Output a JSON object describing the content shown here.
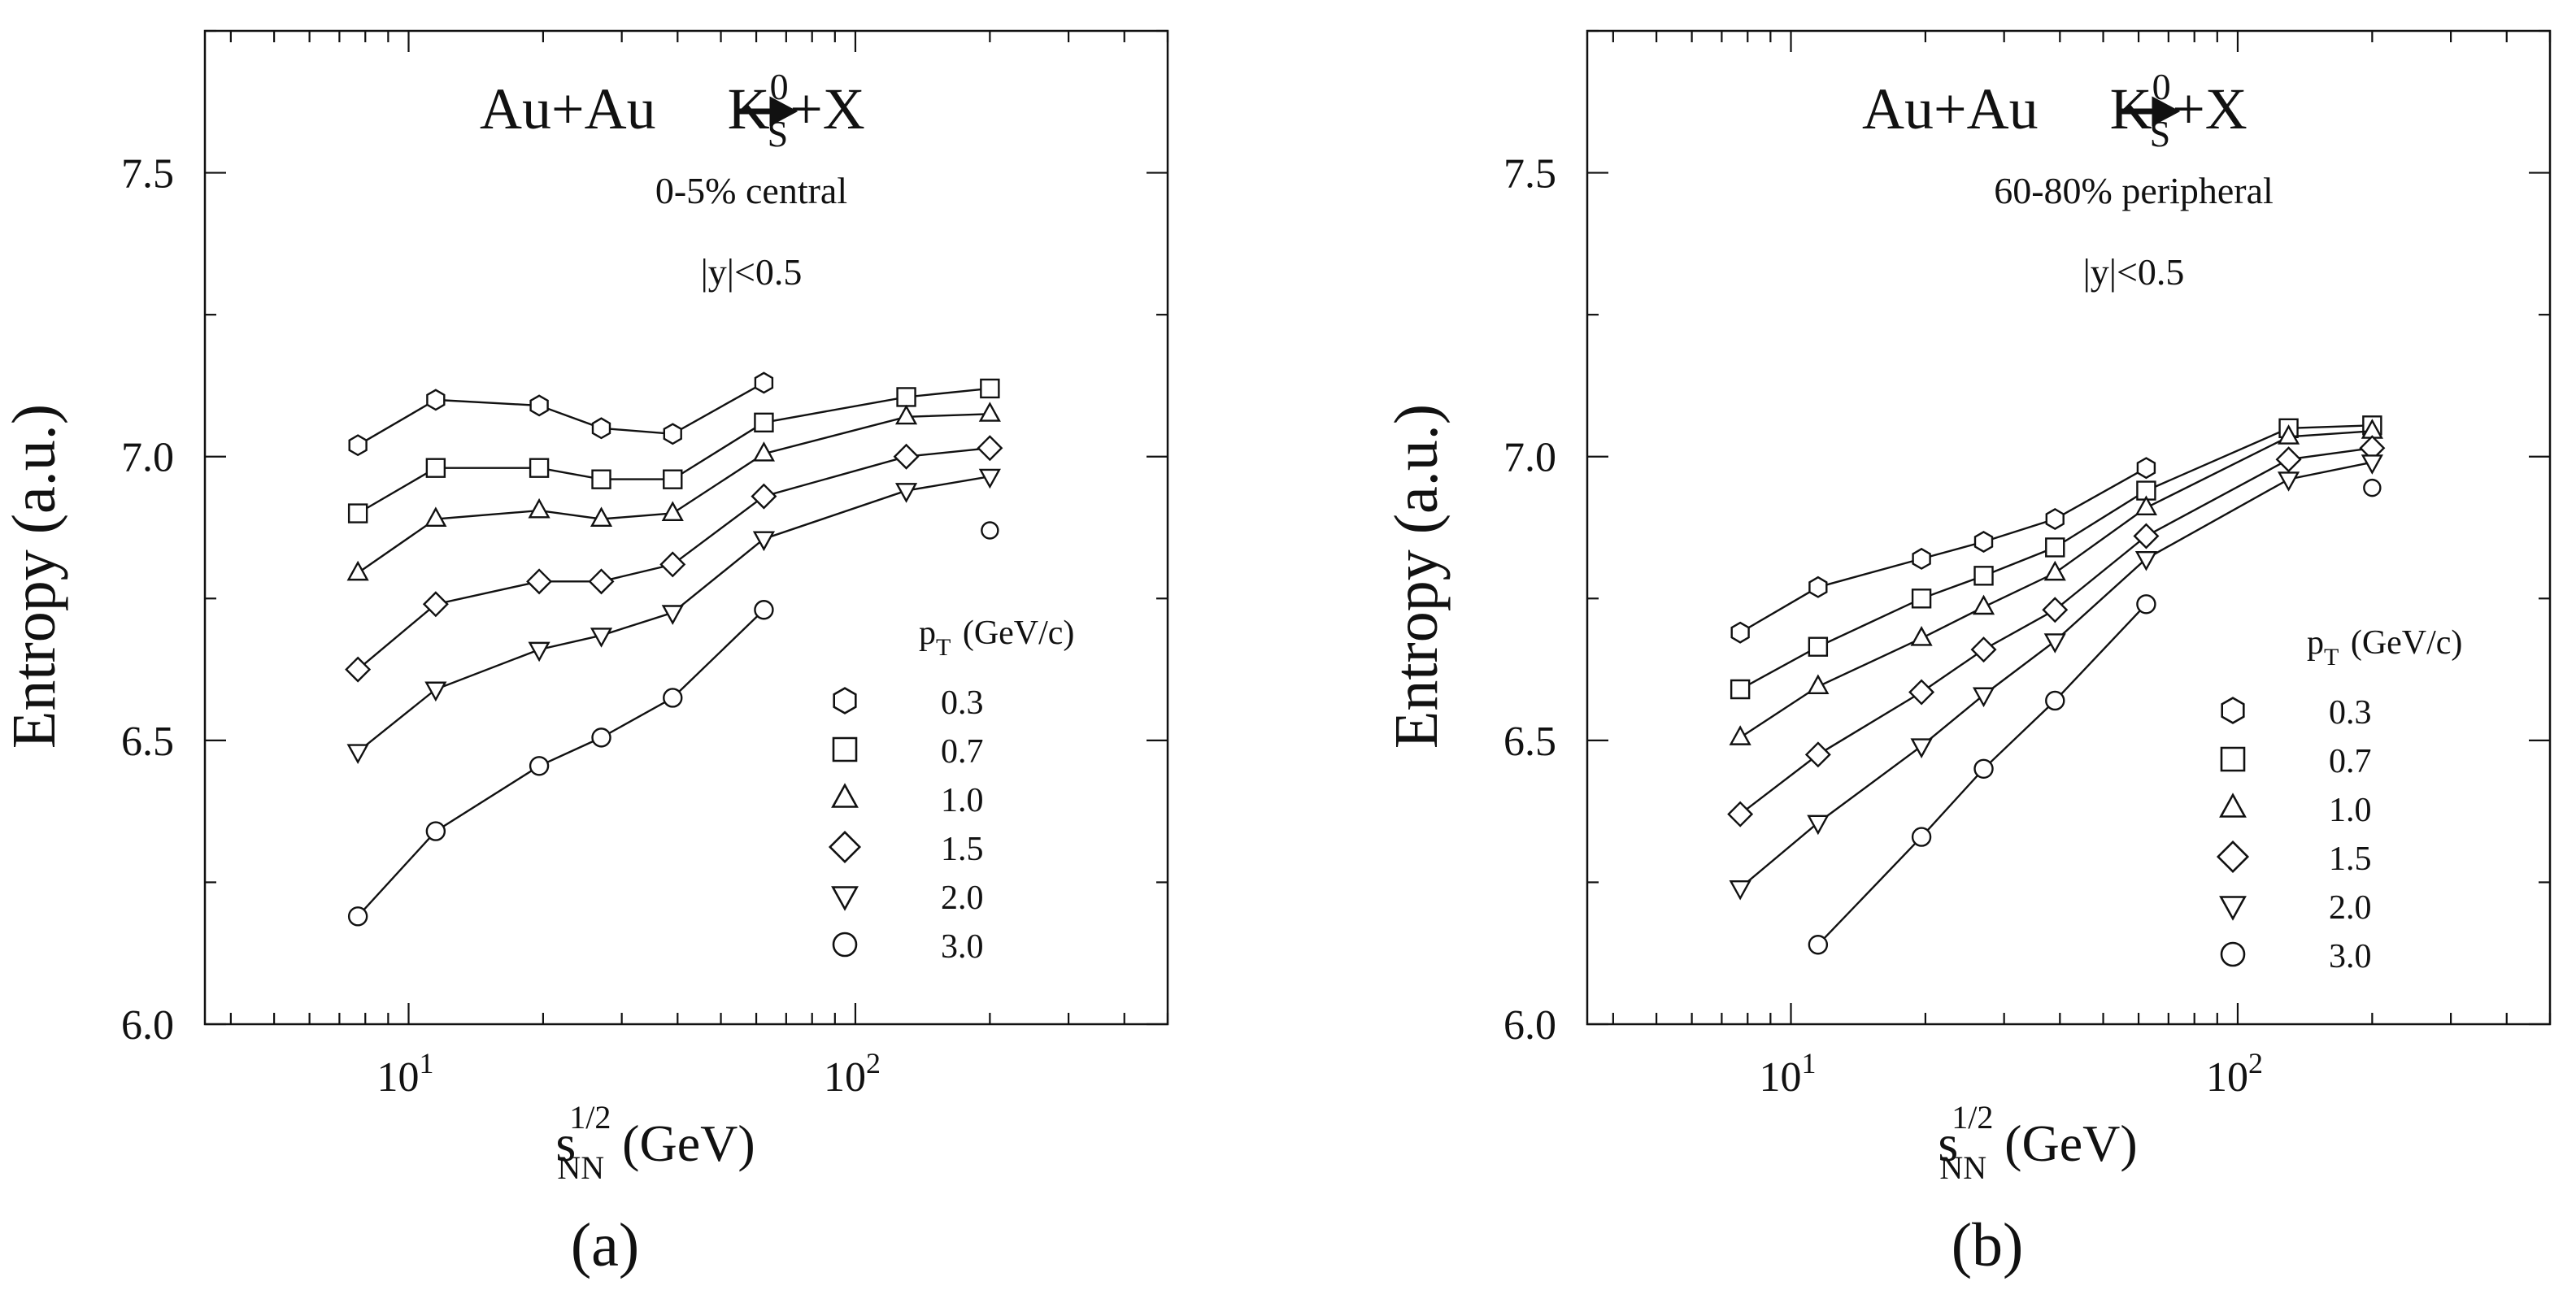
{
  "chart_data": [
    {
      "type": "line",
      "panel_label": "(a)",
      "title_main": "Au+Au",
      "title_particle": "K",
      "title_super": "0",
      "title_sub": "S",
      "title_tail": "+X",
      "subtitle": "0-5% central",
      "rapidity": "|y|<0.5",
      "ylabel": "Entropy  (a.u.)",
      "xlabel_main": "s",
      "xlabel_super": "1/2",
      "xlabel_sub": "NN",
      "xlabel_unit": "(GeV)",
      "xscale": "log",
      "xlim": [
        3.5,
        500
      ],
      "ylim": [
        6.0,
        7.75
      ],
      "y_ticks": [
        "6.0",
        "6.5",
        "7.0",
        "7.5"
      ],
      "x_ticks": [
        {
          "base": "10",
          "exp": "1"
        },
        {
          "base": "10",
          "exp": "2"
        }
      ],
      "legend_title_main": "p",
      "legend_title_sub": "T",
      "legend_title_unit": "(GeV/c)",
      "legend_placement": "bottom-right",
      "series": [
        {
          "name": "0.3",
          "marker": "hexagon",
          "x": [
            7.7,
            11.5,
            19.6,
            27,
            39,
            62.4
          ],
          "y": [
            7.02,
            7.1,
            7.09,
            7.05,
            7.04,
            7.13
          ]
        },
        {
          "name": "0.7",
          "marker": "square",
          "x": [
            7.7,
            11.5,
            19.6,
            27,
            39,
            62.4,
            130,
            200
          ],
          "y": [
            6.9,
            6.98,
            6.98,
            6.96,
            6.96,
            7.06,
            7.105,
            7.12
          ]
        },
        {
          "name": "1.0",
          "marker": "triangle-up",
          "x": [
            7.7,
            11.5,
            19.6,
            27,
            39,
            62.4,
            130,
            200
          ],
          "y": [
            6.795,
            6.89,
            6.905,
            6.89,
            6.9,
            7.005,
            7.07,
            7.075
          ]
        },
        {
          "name": "1.5",
          "marker": "diamond",
          "x": [
            7.7,
            11.5,
            19.6,
            27,
            39,
            62.4,
            130,
            200
          ],
          "y": [
            6.625,
            6.74,
            6.78,
            6.78,
            6.81,
            6.93,
            7.0,
            7.015
          ]
        },
        {
          "name": "2.0",
          "marker": "triangle-down",
          "x": [
            7.7,
            11.5,
            19.6,
            27,
            39,
            62.4,
            130,
            200
          ],
          "y": [
            6.48,
            6.59,
            6.66,
            6.685,
            6.725,
            6.855,
            6.94,
            6.965
          ]
        },
        {
          "name": "3.0",
          "marker": "circle",
          "x": [
            7.7,
            11.5,
            19.6,
            27,
            39,
            62.4
          ],
          "y": [
            6.19,
            6.34,
            6.455,
            6.505,
            6.575,
            6.73
          ],
          "extra_point": {
            "x": 200,
            "y": 6.87
          }
        }
      ]
    },
    {
      "type": "line",
      "panel_label": "(b)",
      "title_main": "Au+Au",
      "title_particle": "K",
      "title_super": "0",
      "title_sub": "S",
      "title_tail": "+X",
      "subtitle": "60-80% peripheral",
      "rapidity": "|y|<0.5",
      "ylabel": "Entropy  (a.u.)",
      "xlabel_main": "s",
      "xlabel_super": "1/2",
      "xlabel_sub": "NN",
      "xlabel_unit": "(GeV)",
      "xscale": "log",
      "xlim": [
        3.5,
        500
      ],
      "ylim": [
        6.0,
        7.75
      ],
      "y_ticks": [
        "6.0",
        "6.5",
        "7.0",
        "7.5"
      ],
      "x_ticks": [
        {
          "base": "10",
          "exp": "1"
        },
        {
          "base": "10",
          "exp": "2"
        }
      ],
      "legend_title_main": "p",
      "legend_title_sub": "T",
      "legend_title_unit": "(GeV/c)",
      "legend_placement": "bottom-right",
      "series": [
        {
          "name": "0.3",
          "marker": "hexagon",
          "x": [
            7.7,
            11.5,
            19.6,
            27,
            39,
            62.4
          ],
          "y": [
            6.69,
            6.77,
            6.82,
            6.85,
            6.89,
            6.98
          ]
        },
        {
          "name": "0.7",
          "marker": "square",
          "x": [
            7.7,
            11.5,
            19.6,
            27,
            39,
            62.4,
            130,
            200
          ],
          "y": [
            6.59,
            6.665,
            6.75,
            6.79,
            6.84,
            6.94,
            7.05,
            7.055
          ]
        },
        {
          "name": "1.0",
          "marker": "triangle-up",
          "x": [
            7.7,
            11.5,
            19.6,
            27,
            39,
            62.4,
            130,
            200
          ],
          "y": [
            6.505,
            6.595,
            6.68,
            6.735,
            6.795,
            6.91,
            7.035,
            7.045
          ]
        },
        {
          "name": "1.5",
          "marker": "diamond",
          "x": [
            7.7,
            11.5,
            19.6,
            27,
            39,
            62.4,
            130,
            200
          ],
          "y": [
            6.37,
            6.475,
            6.585,
            6.66,
            6.73,
            6.86,
            6.995,
            7.015
          ]
        },
        {
          "name": "2.0",
          "marker": "triangle-down",
          "x": [
            7.7,
            11.5,
            19.6,
            27,
            39,
            62.4,
            130,
            200
          ],
          "y": [
            6.24,
            6.355,
            6.49,
            6.58,
            6.675,
            6.82,
            6.96,
            6.99
          ]
        },
        {
          "name": "3.0",
          "marker": "circle",
          "x": [
            11.5,
            19.6,
            27,
            39,
            62.4
          ],
          "y": [
            6.14,
            6.33,
            6.45,
            6.57,
            6.74
          ],
          "extra_point": {
            "x": 200,
            "y": 6.945
          }
        }
      ]
    }
  ]
}
